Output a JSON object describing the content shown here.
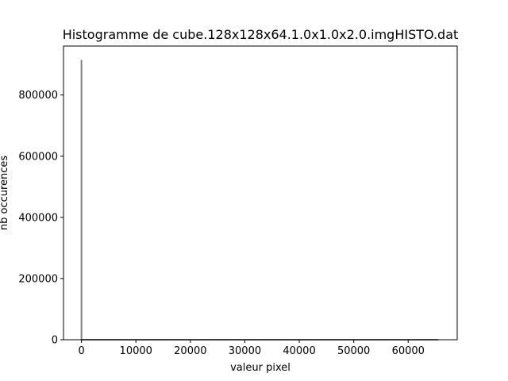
{
  "chart_data": {
    "type": "line",
    "title": "Histogramme de cube.128x128x64.1.0x1.0x2.0.imgHISTO.dat",
    "xlabel": "valeur pixel",
    "ylabel": "nb occurences",
    "xlim": [
      -3300,
      69000
    ],
    "ylim": [
      0,
      960000
    ],
    "xticks": [
      0,
      10000,
      20000,
      30000,
      40000,
      50000,
      60000
    ],
    "xtick_labels": [
      "0",
      "10000",
      "20000",
      "30000",
      "40000",
      "50000",
      "60000"
    ],
    "yticks": [
      0,
      200000,
      400000,
      600000,
      800000
    ],
    "ytick_labels": [
      "0",
      "200000",
      "400000",
      "600000",
      "800000"
    ],
    "grid": false,
    "series": [
      {
        "color": "#808080",
        "x": [
          0,
          0,
          0,
          200,
          65535
        ],
        "y": [
          0,
          915000,
          0,
          0,
          0
        ]
      }
    ]
  }
}
